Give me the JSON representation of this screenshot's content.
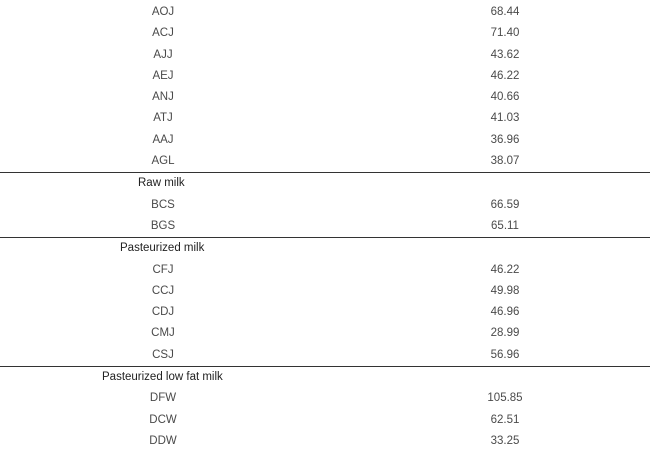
{
  "groups": [
    {
      "title": "",
      "rows": [
        {
          "code": "AOJ",
          "value": "68.44"
        },
        {
          "code": "ACJ",
          "value": "71.40"
        },
        {
          "code": "AJJ",
          "value": "43.62"
        },
        {
          "code": "AEJ",
          "value": "46.22"
        },
        {
          "code": "ANJ",
          "value": "40.66"
        },
        {
          "code": "ATJ",
          "value": "41.03"
        },
        {
          "code": "AAJ",
          "value": "36.96"
        },
        {
          "code": "AGL",
          "value": "38.07"
        }
      ]
    },
    {
      "title": "Raw milk",
      "rows": [
        {
          "code": "BCS",
          "value": "66.59"
        },
        {
          "code": "BGS",
          "value": "65.11"
        }
      ]
    },
    {
      "title": "Pasteurized milk",
      "rows": [
        {
          "code": "CFJ",
          "value": "46.22"
        },
        {
          "code": "CCJ",
          "value": "49.98"
        },
        {
          "code": "CDJ",
          "value": "46.96"
        },
        {
          "code": "CMJ",
          "value": "28.99"
        },
        {
          "code": "CSJ",
          "value": "56.96"
        }
      ]
    },
    {
      "title": "Pasteurized low fat milk",
      "rows": [
        {
          "code": "DFW",
          "value": "105.85"
        },
        {
          "code": "DCW",
          "value": "62.51"
        },
        {
          "code": "DDW",
          "value": "33.25"
        }
      ]
    }
  ]
}
